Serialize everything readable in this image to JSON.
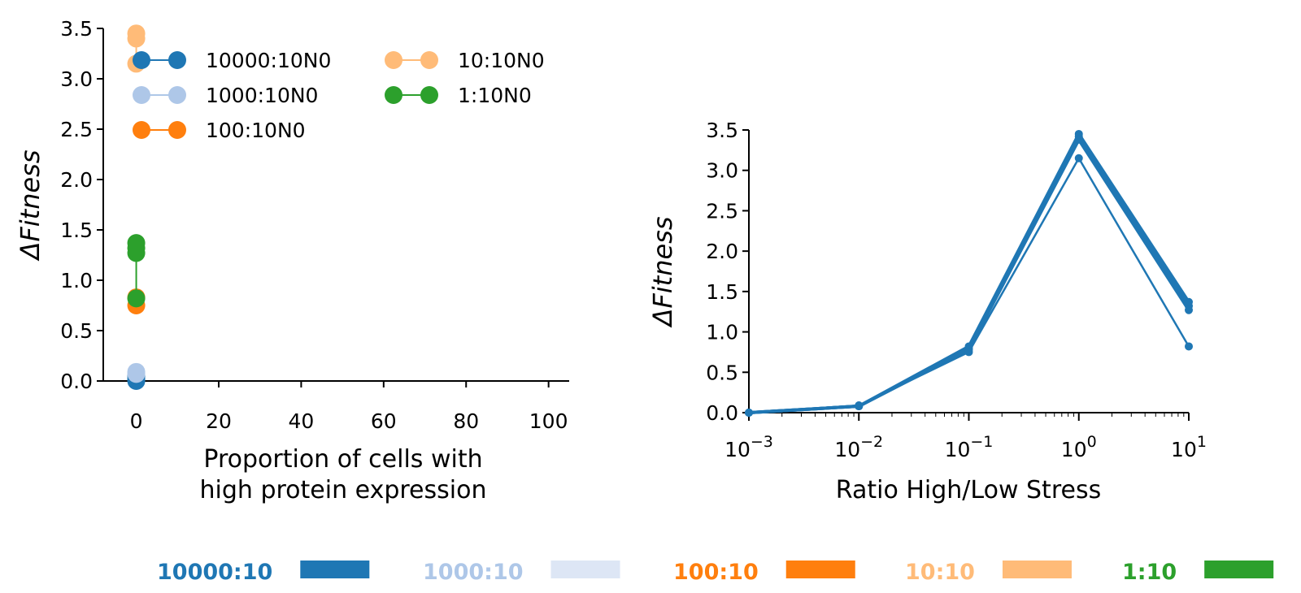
{
  "colors": {
    "c10000": "#1f77b4",
    "c1000": "#aec7e8",
    "c100": "#ff7f0e",
    "c10": "#ffbb78",
    "c1": "#2ca02c",
    "c1000_bar": "#dde6f5"
  },
  "chart_data": [
    {
      "type": "line",
      "xlabel_lines": [
        "Proportion of cells with",
        "high protein expression"
      ],
      "ylabel": "ΔFitness",
      "xlim": [
        -8,
        105
      ],
      "ylim": [
        0,
        3.5
      ],
      "xticks": [
        0,
        20,
        40,
        60,
        80,
        100
      ],
      "yticks": [
        0.0,
        0.5,
        1.0,
        1.5,
        2.0,
        2.5,
        3.0,
        3.5
      ],
      "xtick_labels": [
        "0",
        "20",
        "40",
        "60",
        "80",
        "100"
      ],
      "ytick_labels": [
        "0.0",
        "0.5",
        "1.0",
        "1.5",
        "2.0",
        "2.5",
        "3.0",
        "3.5"
      ],
      "legend_position": "upper-left",
      "series": [
        {
          "name": "10000:10N0",
          "color_key": "c10000",
          "x": [
            0,
            0,
            0
          ],
          "y": [
            0.0,
            0.02,
            0.05
          ]
        },
        {
          "name": "1000:10N0",
          "color_key": "c1000",
          "x": [
            0,
            0
          ],
          "y": [
            0.07,
            0.09
          ]
        },
        {
          "name": "100:10N0",
          "color_key": "c100",
          "x": [
            0,
            0
          ],
          "y": [
            0.75,
            0.83
          ]
        },
        {
          "name": "10:10N0",
          "color_key": "c10",
          "x": [
            0,
            0,
            0
          ],
          "y": [
            3.15,
            3.4,
            3.45
          ]
        },
        {
          "name": "1:10N0",
          "color_key": "c1",
          "x": [
            0,
            0,
            0,
            0
          ],
          "y": [
            0.82,
            1.27,
            1.32,
            1.37
          ]
        }
      ]
    },
    {
      "type": "line",
      "xscale": "log",
      "xlabel": "Ratio High/Low Stress",
      "ylabel": "ΔFitness",
      "xlim": [
        0.001,
        10
      ],
      "ylim": [
        0,
        3.5
      ],
      "xtick_exponents": [
        "−3",
        "−2",
        "−1",
        "0",
        "1"
      ],
      "xtick_base": "10",
      "yticks": [
        0.0,
        0.5,
        1.0,
        1.5,
        2.0,
        2.5,
        3.0,
        3.5
      ],
      "ytick_labels": [
        "0.0",
        "0.5",
        "1.0",
        "1.5",
        "2.0",
        "2.5",
        "3.0",
        "3.5"
      ],
      "series": [
        {
          "color_key": "c10000",
          "x": [
            0.001,
            0.01,
            0.1,
            1,
            10
          ],
          "y": [
            0.0,
            0.08,
            0.82,
            3.45,
            1.37
          ],
          "width": 4
        },
        {
          "color_key": "c10000",
          "x": [
            0.001,
            0.01,
            0.1,
            1,
            10
          ],
          "y": [
            0.0,
            0.08,
            0.8,
            3.42,
            1.32
          ],
          "width": 4
        },
        {
          "color_key": "c10000",
          "x": [
            0.001,
            0.01,
            0.1,
            1,
            10
          ],
          "y": [
            0.0,
            0.08,
            0.78,
            3.38,
            1.27
          ],
          "width": 4
        },
        {
          "color_key": "c10000",
          "x": [
            0.001,
            0.01,
            0.1,
            1,
            10
          ],
          "y": [
            0.0,
            0.09,
            0.75,
            3.15,
            0.82
          ],
          "width": 2.5
        }
      ]
    }
  ],
  "bottom_legend": [
    {
      "label": "10000:10",
      "color_key": "c10000",
      "bar_key": "c10000"
    },
    {
      "label": "1000:10",
      "color_key": "c1000",
      "bar_key": "c1000_bar"
    },
    {
      "label": "100:10",
      "color_key": "c100",
      "bar_key": "c100"
    },
    {
      "label": "10:10",
      "color_key": "c10",
      "bar_key": "c10"
    },
    {
      "label": "1:10",
      "color_key": "c1",
      "bar_key": "c1"
    }
  ]
}
